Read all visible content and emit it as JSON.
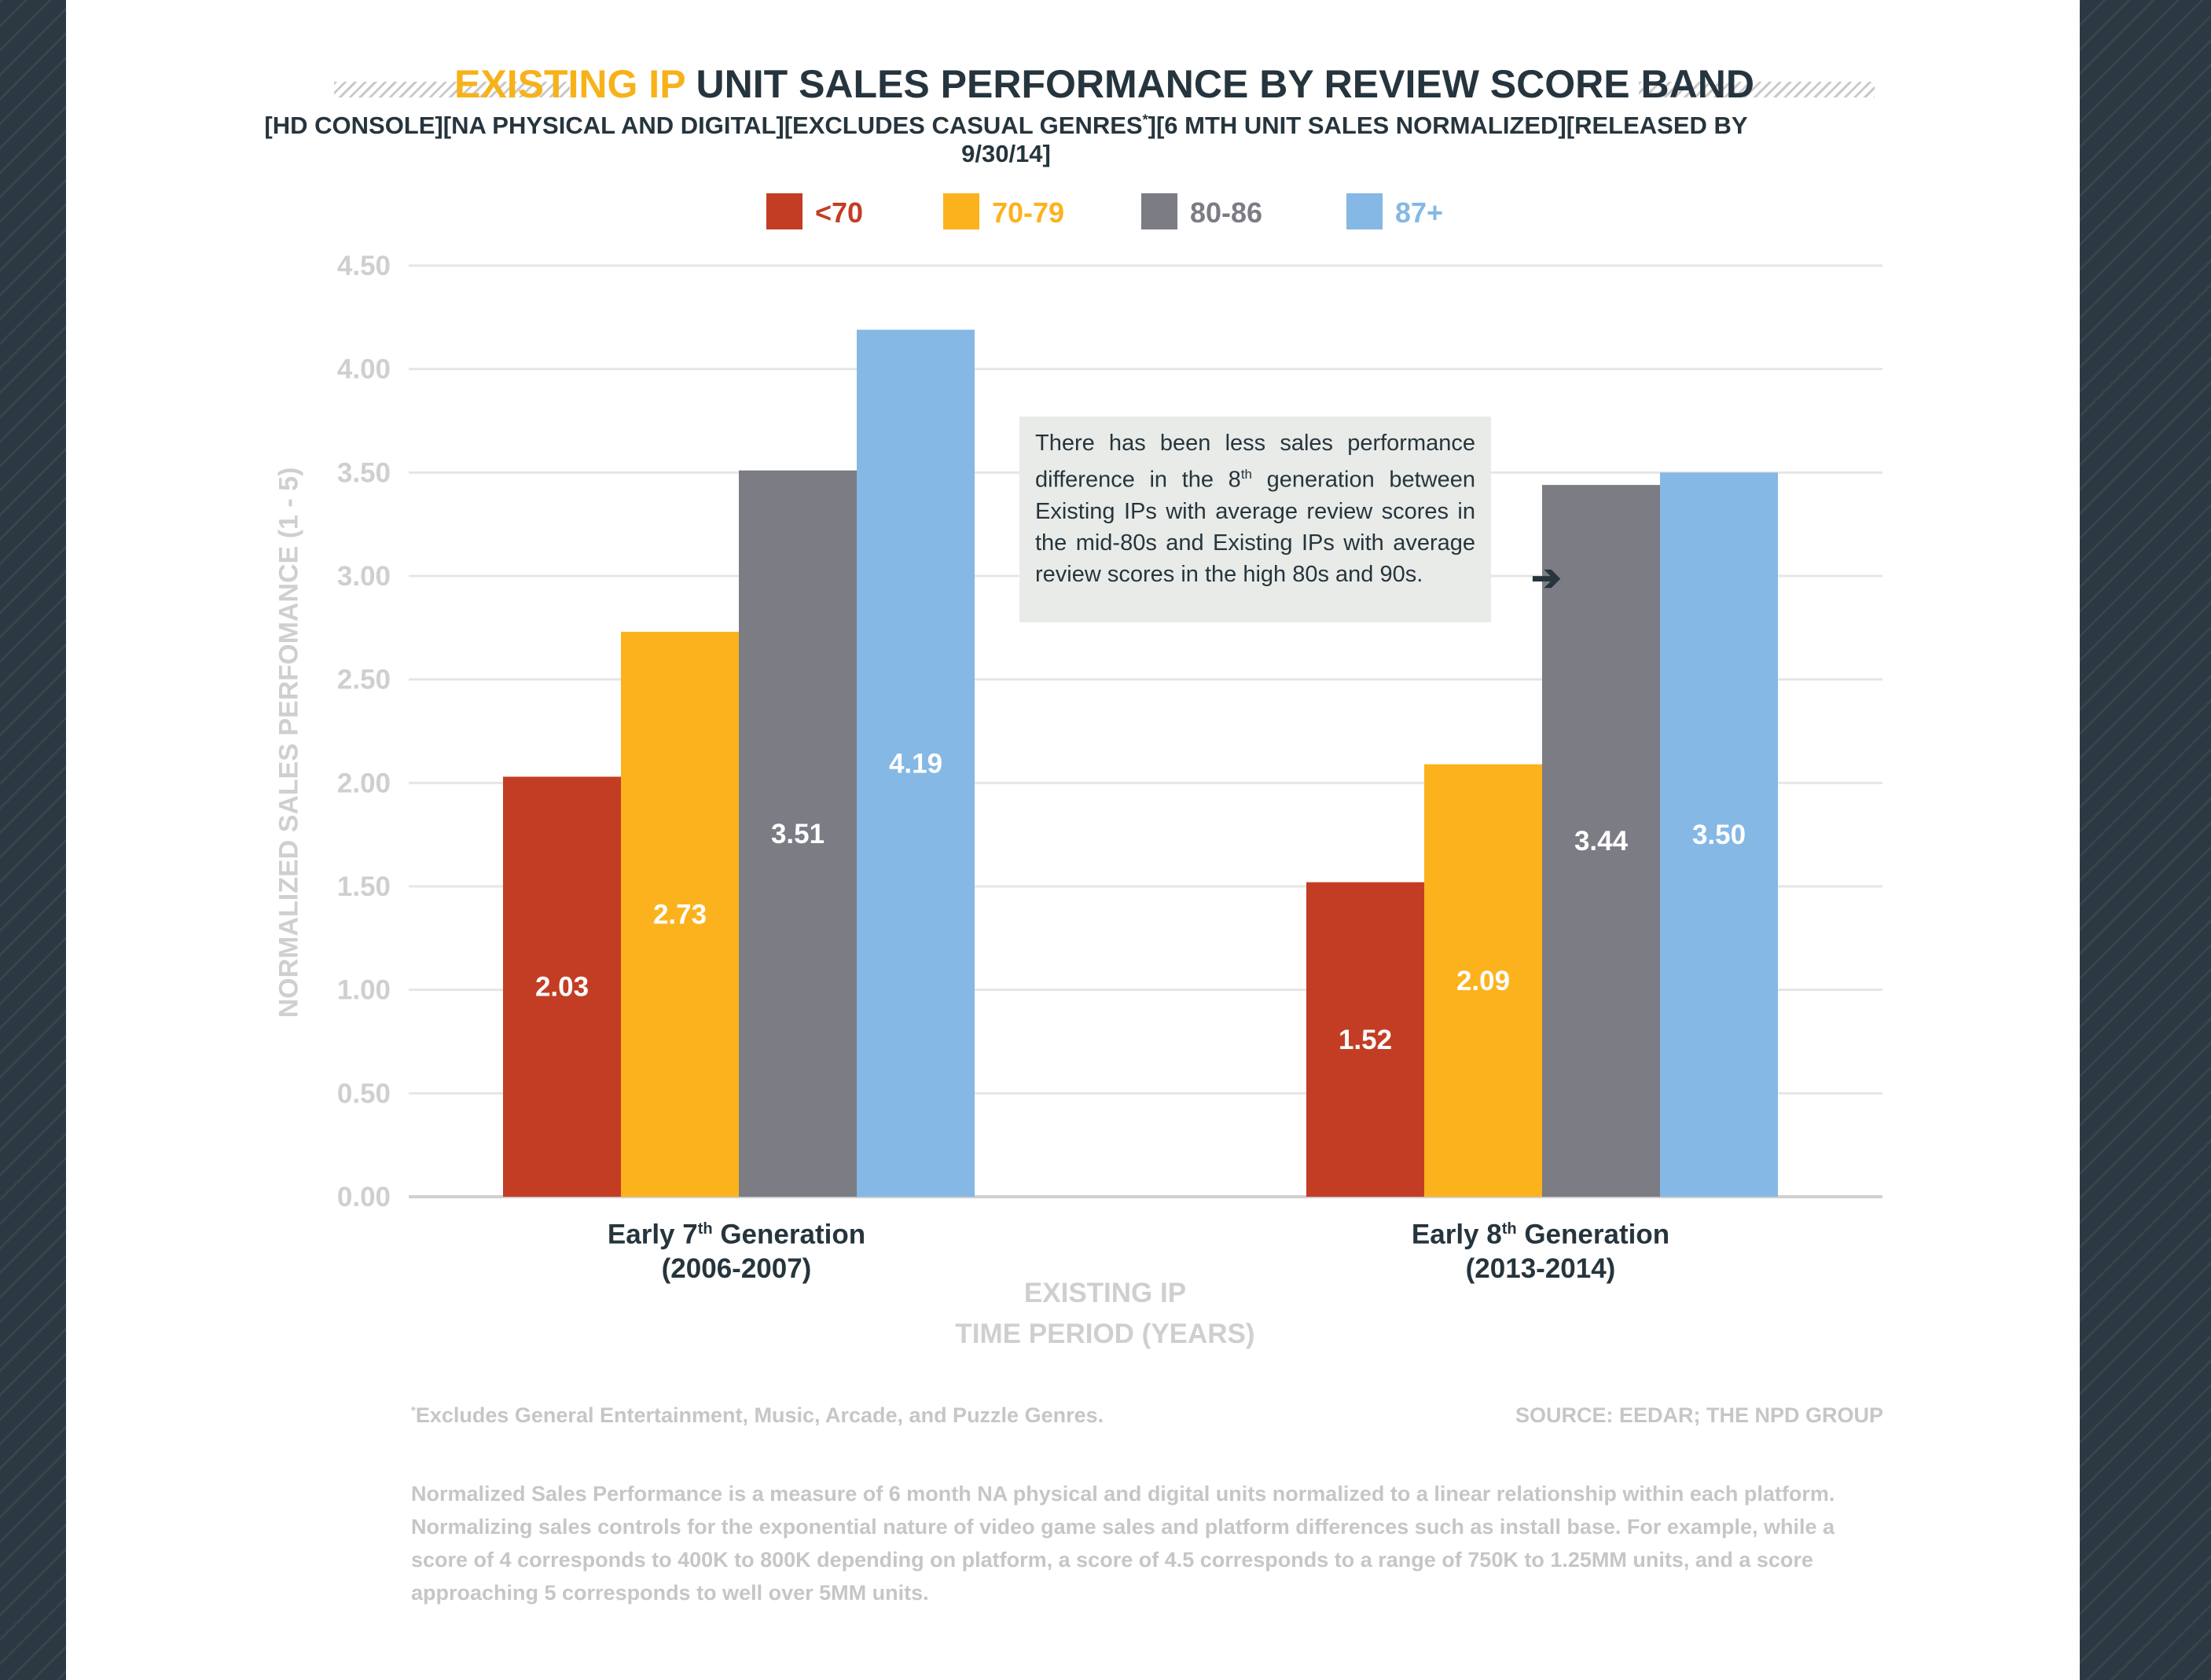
{
  "title": {
    "accent": "EXISTING IP",
    "rest": " UNIT SALES PERFORMANCE BY REVIEW SCORE BAND"
  },
  "subtitle": {
    "part1": "[HD CONSOLE][NA PHYSICAL AND DIGITAL][EXCLUDES CASUAL GENRES",
    "sup": "*",
    "part2": "][6 MTH UNIT SALES NORMALIZED][RELEASED BY 9/30/14]"
  },
  "callout": {
    "part1": "There has been less sales performance difference in the 8",
    "sup": "th",
    "part2": " generation between Existing IPs with average review scores in the mid-80s and Existing IPs with average review scores in the high 80s and 90s."
  },
  "x_categories": [
    {
      "line1": "Early 7",
      "sup": "th",
      "line1b": " Generation",
      "line2": "(2006-2007)"
    },
    {
      "line1": "Early 8",
      "sup": "th",
      "line1b": " Generation",
      "line2": "(2013-2014)"
    }
  ],
  "x_axis_title": {
    "line1": "EXISTING IP",
    "line2": "TIME PERIOD (YEARS)"
  },
  "y_axis_title": "NORMALIZED SALES PERFOMANCE (1 - 5)",
  "footnote": {
    "sup": "*",
    "text": "Excludes General Entertainment, Music, Arcade, and Puzzle Genres."
  },
  "source": "SOURCE: EEDAR; THE NPD GROUP",
  "note": "Normalized Sales Performance is a measure of 6 month NA physical and digital units normalized to a linear relationship within each platform. Normalizing sales controls for the exponential nature of video game sales and platform differences such as install base.  For example, while a score of 4 corresponds to 400K to 800K depending on platform, a score of 4.5 corresponds to a range of 750K to 1.25MM units, and a score approaching 5 corresponds to well over 5MM units.",
  "chart_data": {
    "type": "bar",
    "categories": [
      "Early 7th Generation (2006-2007)",
      "Early 8th Generation (2013-2014)"
    ],
    "series": [
      {
        "name": "<70",
        "color": "#c33d25",
        "values": [
          2.03,
          1.52
        ],
        "labels": [
          "2.03",
          "1.52"
        ]
      },
      {
        "name": "70-79",
        "color": "#fcb21d",
        "values": [
          2.73,
          2.09
        ],
        "labels": [
          "2.73",
          "2.09"
        ]
      },
      {
        "name": "80-86",
        "color": "#7b7c84",
        "values": [
          3.51,
          3.44
        ],
        "labels": [
          "3.51",
          "3.44"
        ]
      },
      {
        "name": "87+",
        "color": "#85b8e4",
        "values": [
          4.19,
          3.5
        ],
        "labels": [
          "4.19",
          "3.50"
        ]
      }
    ],
    "ylim": [
      0,
      4.5
    ],
    "yticks": [
      "0.00",
      "0.50",
      "1.00",
      "1.50",
      "2.00",
      "2.50",
      "3.00",
      "3.50",
      "4.00",
      "4.50"
    ],
    "ylabel": "NORMALIZED SALES PERFOMANCE (1 - 5)",
    "xlabel": "EXISTING IP TIME PERIOD (YEARS)",
    "grid": true,
    "legend": "top-center"
  }
}
